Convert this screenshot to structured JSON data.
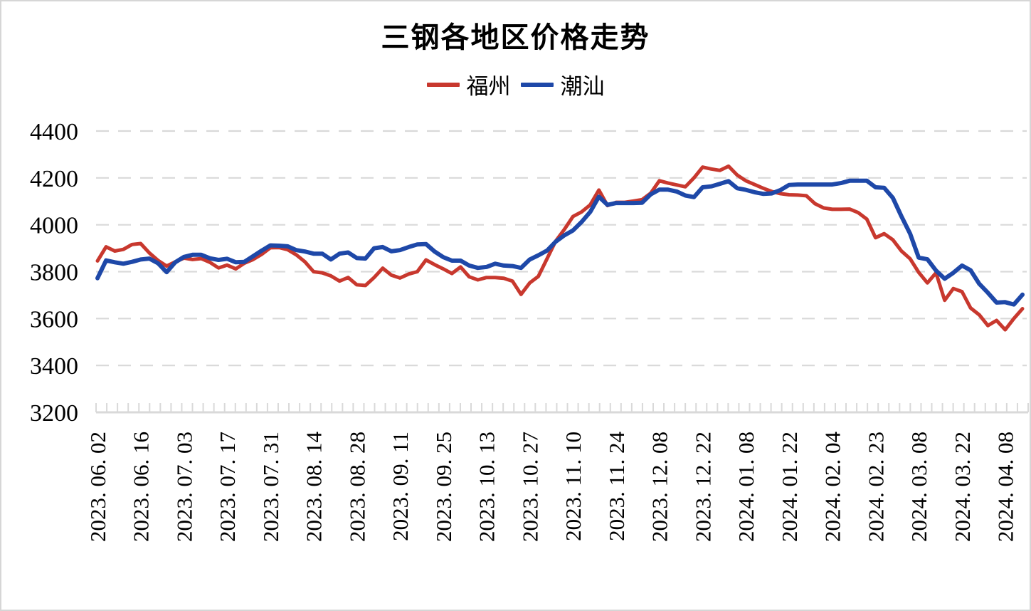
{
  "title": "三钢各地区价格走势",
  "legend": [
    {
      "name": "福州",
      "color": "#C8382E"
    },
    {
      "name": "潮汕",
      "color": "#1E48A8"
    }
  ],
  "colors": {
    "grid": "#D9D9D9",
    "axis": "#D9D9D9",
    "text": "#000000",
    "background": "#FFFFFF"
  },
  "chart_data": {
    "type": "line",
    "title": "三钢各地区价格走势",
    "xlabel": "",
    "ylabel": "",
    "grid": "dashed-horizontal",
    "legend_position": "top-center",
    "y_axis": {
      "min": 3200,
      "max": 4400,
      "tick_step": 200,
      "ticks": [
        3200,
        3400,
        3600,
        3800,
        4000,
        4200,
        4400
      ]
    },
    "x_axis": {
      "tick_labels": [
        "2023. 06. 02",
        "2023. 06. 16",
        "2023. 07. 03",
        "2023. 07. 17",
        "2023. 07. 31",
        "2023. 08. 14",
        "2023. 08. 28",
        "2023. 09. 11",
        "2023. 09. 25",
        "2023. 10. 13",
        "2023. 10. 27",
        "2023. 11. 10",
        "2023. 11. 24",
        "2023. 12. 08",
        "2023. 12. 22",
        "2024. 01. 08",
        "2024. 01. 22",
        "2024. 02. 04",
        "2024. 02. 23",
        "2024. 03. 08",
        "2024. 03. 22",
        "2024. 04. 08"
      ],
      "points_per_label": 5,
      "minor_tick_count": 88
    },
    "series": [
      {
        "name": "福州",
        "color": "#C8382E",
        "values": [
          3846,
          3906,
          3888,
          3895,
          3916,
          3920,
          3880,
          3848,
          3824,
          3842,
          3858,
          3852,
          3856,
          3840,
          3816,
          3828,
          3812,
          3836,
          3852,
          3874,
          3902,
          3903,
          3894,
          3872,
          3842,
          3800,
          3795,
          3782,
          3760,
          3775,
          3744,
          3741,
          3775,
          3815,
          3785,
          3773,
          3790,
          3800,
          3850,
          3830,
          3812,
          3792,
          3820,
          3778,
          3765,
          3775,
          3775,
          3772,
          3760,
          3703,
          3752,
          3780,
          3855,
          3930,
          3980,
          4035,
          4055,
          4085,
          4148,
          4082,
          4096,
          4096,
          4101,
          4107,
          4135,
          4188,
          4178,
          4170,
          4162,
          4200,
          4246,
          4238,
          4232,
          4250,
          4212,
          4188,
          4172,
          4156,
          4142,
          4133,
          4128,
          4127,
          4124,
          4090,
          4072,
          4066,
          4066,
          4067,
          4052,
          4024,
          3945,
          3962,
          3936,
          3888,
          3855,
          3797,
          3752,
          3795,
          3678,
          3728,
          3715,
          3645,
          3616,
          3570,
          3592,
          3552,
          3600,
          3642
        ]
      },
      {
        "name": "潮汕",
        "color": "#1E48A8",
        "values": [
          3772,
          3848,
          3840,
          3834,
          3842,
          3852,
          3856,
          3836,
          3798,
          3840,
          3863,
          3872,
          3872,
          3857,
          3850,
          3855,
          3840,
          3842,
          3866,
          3890,
          3912,
          3911,
          3908,
          3892,
          3886,
          3877,
          3877,
          3852,
          3877,
          3882,
          3858,
          3856,
          3900,
          3905,
          3887,
          3892,
          3905,
          3916,
          3918,
          3886,
          3862,
          3847,
          3847,
          3826,
          3816,
          3820,
          3834,
          3826,
          3824,
          3816,
          3852,
          3870,
          3890,
          3928,
          3955,
          3976,
          4012,
          4055,
          4120,
          4085,
          4093,
          4093,
          4093,
          4094,
          4130,
          4150,
          4150,
          4142,
          4125,
          4118,
          4160,
          4164,
          4175,
          4186,
          4156,
          4149,
          4139,
          4132,
          4134,
          4148,
          4170,
          4172,
          4172,
          4172,
          4172,
          4172,
          4178,
          4188,
          4188,
          4188,
          4160,
          4158,
          4115,
          4036,
          3962,
          3860,
          3853,
          3805,
          3770,
          3795,
          3826,
          3806,
          3748,
          3710,
          3668,
          3670,
          3660,
          3702
        ]
      }
    ]
  }
}
